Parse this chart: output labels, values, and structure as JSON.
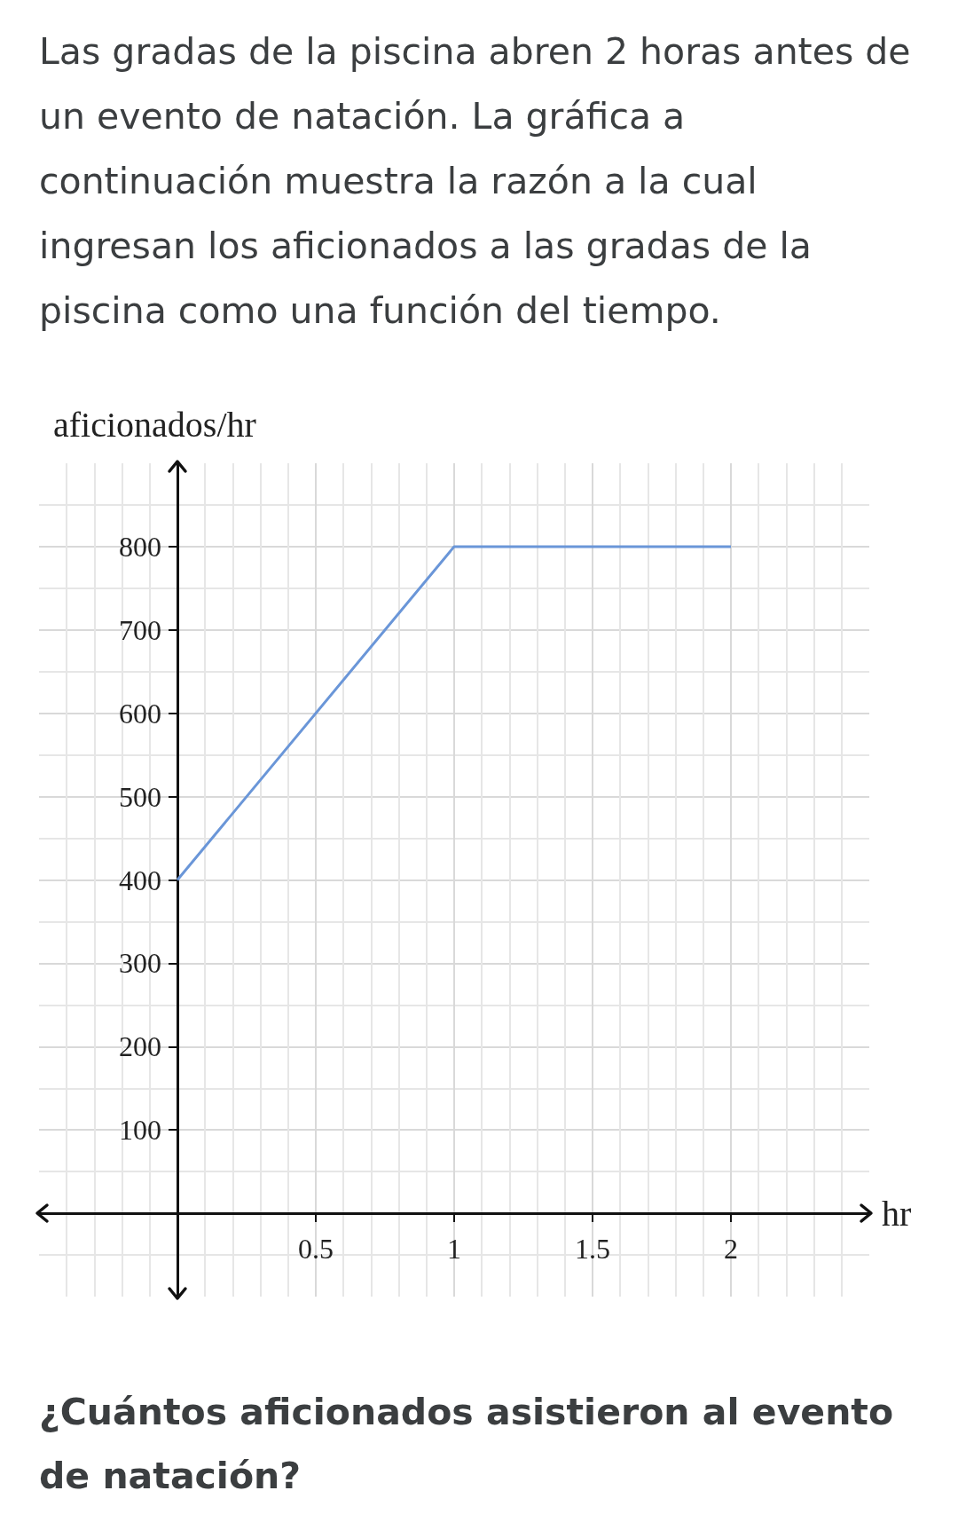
{
  "chart_data": {
    "type": "line",
    "title": "Las gradas de la piscina abren 2 horas antes de un evento de natación. La gráfica a continuación muestra la razón a la cual ingresan los aficionados a las gradas de la piscina como una función del tiempo.",
    "ylabel": "aficionados/hr",
    "xlabel": "hr",
    "annotations": [
      "¿Cuántos aficionados asistieron al evento de natación?"
    ],
    "x": [
      0,
      1,
      2
    ],
    "series": [
      {
        "color": "#6a96d8",
        "values": [
          400,
          800,
          800
        ]
      }
    ],
    "xlim": [
      -0.5,
      2.5
    ],
    "ylim": [
      -100,
      900
    ],
    "xticks": [
      0.5,
      1,
      1.5,
      2
    ],
    "yticks": [
      100,
      200,
      300,
      400,
      500,
      600,
      700,
      800
    ],
    "grid": true
  }
}
